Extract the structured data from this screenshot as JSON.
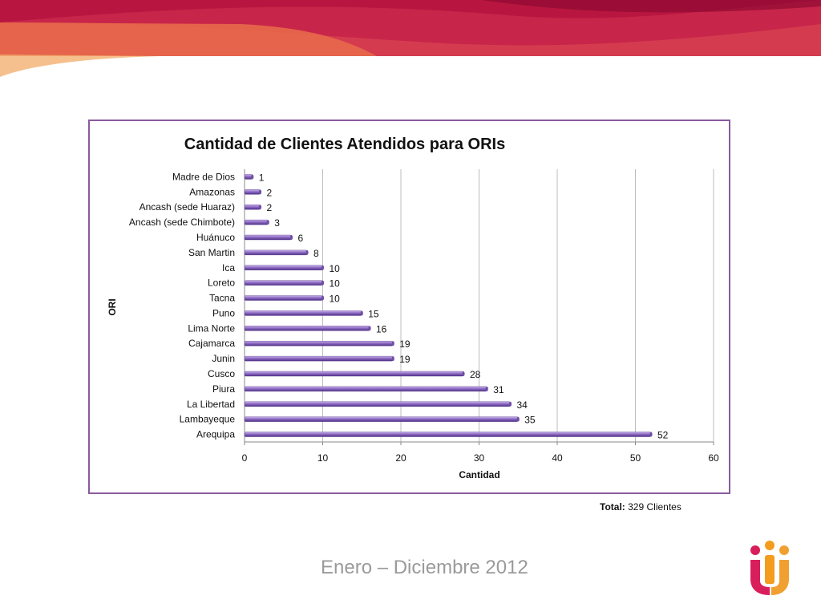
{
  "header": {
    "colors": {
      "dark": "#a0103c",
      "mid": "#c8254a",
      "light": "#e8694a",
      "orange": "#f09a50"
    }
  },
  "chart_data": {
    "type": "bar",
    "orientation": "horizontal",
    "title": "Cantidad de Clientes Atendidos para ORIs",
    "xlabel": "Cantidad",
    "ylabel": "ORI",
    "xlim": [
      0,
      60
    ],
    "x_ticks": [
      0,
      10,
      20,
      30,
      40,
      50,
      60
    ],
    "grid": true,
    "legend": "none",
    "bar_color": "#8e6cc4",
    "categories": [
      "Madre de Dios",
      "Amazonas",
      "Ancash (sede Huaraz)",
      "Ancash (sede Chimbote)",
      "Huánuco",
      "San Martin",
      "Ica",
      "Loreto",
      "Tacna",
      "Puno",
      "Lima Norte",
      "Cajamarca",
      "Junin",
      "Cusco",
      "Piura",
      "La Libertad",
      "Lambayeque",
      "Arequipa"
    ],
    "values": [
      1,
      2,
      2,
      3,
      6,
      8,
      10,
      10,
      10,
      15,
      16,
      19,
      19,
      28,
      31,
      34,
      35,
      52
    ]
  },
  "footer": {
    "total_label": "Total:",
    "total_value": "329 Clientes",
    "period": "Enero – Diciembre 2012",
    "logo_colors": [
      "#d81e5b",
      "#f0a030",
      "#f39c1e"
    ]
  }
}
